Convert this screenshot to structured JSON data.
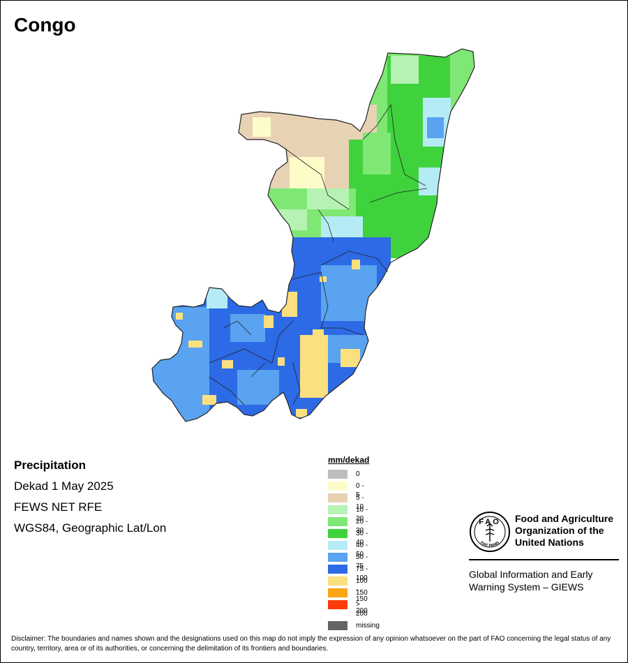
{
  "map": {
    "title": "Congo",
    "variable": "Precipitation",
    "period": "Dekad 1 May 2025",
    "source": "FEWS NET RFE",
    "projection": "WGS84, Geographic Lat/Lon"
  },
  "legend": {
    "unit": "mm/dekad",
    "classes": [
      {
        "label": "0",
        "color": "#bebebe"
      },
      {
        "label": "0 - 5",
        "color": "#fdfcc9"
      },
      {
        "label": "5 - 10",
        "color": "#e8d2b4"
      },
      {
        "label": "10 - 20",
        "color": "#b6f2b3"
      },
      {
        "label": "20 - 30",
        "color": "#7fe874"
      },
      {
        "label": "30 - 40",
        "color": "#3fd23c"
      },
      {
        "label": "40 - 50",
        "color": "#b5ebf4"
      },
      {
        "label": "50 - 75",
        "color": "#59a3f0"
      },
      {
        "label": "75 - 100",
        "color": "#2d6ae6"
      },
      {
        "label": "100 - 150",
        "color": "#fbe080"
      },
      {
        "label": "150 - 200",
        "color": "#fba414"
      },
      {
        "label": "> 200",
        "color": "#fb3c0a"
      }
    ],
    "missing": {
      "label": "missing",
      "color": "#646464"
    }
  },
  "organization": {
    "logo_letters": "FAO",
    "logo_motto": "FIAT PANIS",
    "name_line1": "Food and Agriculture",
    "name_line2": "Organization of the",
    "name_line3": "United Nations",
    "system_line1": "Global Information and Early",
    "system_line2": "Warning System – GIEWS"
  },
  "disclaimer": "Disclaimer: The boundaries and names shown and the designations used on this map do not imply the expression of any opinion whatsoever on the part of FAO concerning the legal status of any country, territory, area or of its authorities, or concerning the delimitation of its frontiers and boundaries."
}
